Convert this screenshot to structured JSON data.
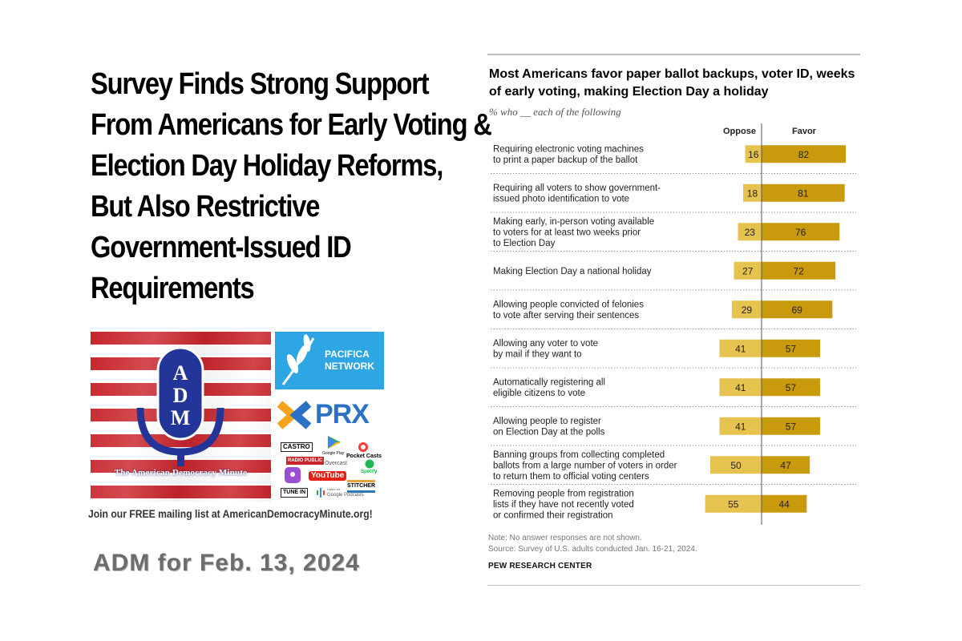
{
  "headline": {
    "lines": [
      "Survey Finds Strong Support",
      "From Americans for Early Voting &",
      "Election Day Holiday Reforms,",
      "But Also Restrictive",
      "Government-Issued ID",
      "Requirements"
    ]
  },
  "logo": {
    "letters": [
      "A",
      "D",
      "M"
    ],
    "caption": "The American Democracy Minute",
    "stripe_color": "#c8242b",
    "mic_color": "#24359a"
  },
  "partners": {
    "pacifica": "PACIFICA\nNETWORK",
    "pacifica_l1": "PACIFICA",
    "pacifica_l2": "NETWORK",
    "prx": "PRX",
    "apps": [
      "CASTRO",
      "Google Play",
      "Pocket Casts",
      "RADIO PUBLIC",
      "Overcast",
      "Spotify",
      "YouTube",
      "STITCHER",
      "TUNE IN",
      "Listen on",
      "Google Podcasts"
    ]
  },
  "mailing": "Join our FREE mailing list at AmericanDemocracyMinute.org!",
  "date_label": "ADM for Feb. 13, 2024",
  "chart_data": {
    "type": "bar",
    "title": "Most Americans favor paper ballot backups, voter ID, weeks of early voting, making Election Day a holiday",
    "subtitle": "% who __ each of the following",
    "oppose_label": "Oppose",
    "favor_label": "Favor",
    "categories": [
      [
        "Requiring electronic voting machines",
        "to print a paper backup of the ballot"
      ],
      [
        "Requiring all voters to show government-",
        "issued photo identification to vote"
      ],
      [
        "Making early, in-person voting available",
        "to voters for at least two weeks prior",
        "to Election Day"
      ],
      [
        "Making Election Day a national holiday"
      ],
      [
        "Allowing people convicted of felonies",
        "to vote after serving their sentences"
      ],
      [
        "Allowing any voter to vote",
        "by mail if they want to"
      ],
      [
        "Automatically registering all",
        "eligible citizens to vote"
      ],
      [
        "Allowing people to register",
        "on Election Day at the polls"
      ],
      [
        "Banning groups from collecting completed",
        "ballots from a large number of voters in order",
        "to return them to official voting centers"
      ],
      [
        "Removing people from registration",
        "lists if they have not recently voted",
        "or confirmed their registration"
      ]
    ],
    "series": [
      {
        "name": "Oppose",
        "values": [
          16,
          18,
          23,
          27,
          29,
          41,
          41,
          41,
          50,
          55
        ],
        "color": "#e6c24f"
      },
      {
        "name": "Favor",
        "values": [
          82,
          81,
          76,
          72,
          69,
          57,
          57,
          57,
          47,
          44
        ],
        "color": "#c99a0c"
      }
    ],
    "note": "Note: No answer responses are not shown.",
    "source": "Source: Survey of U.S. adults conducted Jan. 16-21, 2024.",
    "publisher": "PEW RESEARCH CENTER"
  }
}
